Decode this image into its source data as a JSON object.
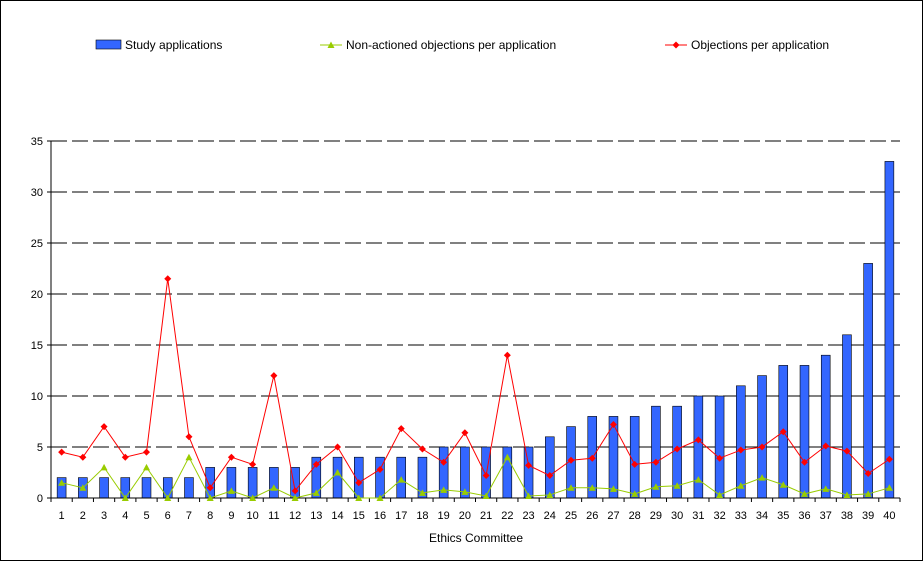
{
  "chart_data": {
    "type": "bar",
    "xlabel": "Ethics Committee",
    "ylabel": "",
    "ylim": [
      0,
      35
    ],
    "ytick_step": 5,
    "grid": "horizontal dashed",
    "legend_position": "top",
    "categories": [
      "1",
      "2",
      "3",
      "4",
      "5",
      "6",
      "7",
      "8",
      "9",
      "10",
      "11",
      "12",
      "13",
      "14",
      "15",
      "16",
      "17",
      "18",
      "19",
      "20",
      "21",
      "22",
      "23",
      "24",
      "25",
      "26",
      "27",
      "28",
      "29",
      "30",
      "31",
      "32",
      "33",
      "34",
      "35",
      "36",
      "37",
      "38",
      "39",
      "40"
    ],
    "series": [
      {
        "name": "Study applications",
        "kind": "bar",
        "color": "#3366ff",
        "values": [
          2,
          2,
          2,
          2,
          2,
          2,
          2,
          3,
          3,
          3,
          3,
          3,
          4,
          4,
          4,
          4,
          4,
          4,
          5,
          5,
          5,
          5,
          5,
          6,
          7,
          8,
          8,
          8,
          9,
          9,
          10,
          10,
          11,
          12,
          13,
          13,
          14,
          16,
          23,
          33
        ]
      },
      {
        "name": "Non-actioned objections per application",
        "kind": "line",
        "marker": "triangle",
        "color": "#99cc00",
        "values": [
          1.5,
          1,
          3,
          0,
          3,
          0,
          4,
          0,
          0.7,
          0,
          1,
          0,
          0.5,
          2.5,
          0,
          0,
          1.8,
          0.5,
          0.8,
          0.6,
          0.2,
          4,
          0.2,
          0.3,
          1,
          1,
          0.9,
          0.4,
          1.1,
          1.2,
          1.8,
          0.3,
          1.2,
          2,
          1.3,
          0.4,
          0.9,
          0.3,
          0.4,
          1
        ]
      },
      {
        "name": "Objections per application",
        "kind": "line",
        "marker": "diamond",
        "color": "#ff0000",
        "values": [
          4.5,
          4,
          7,
          4,
          4.5,
          21.5,
          6,
          1,
          4,
          3.3,
          12,
          0.7,
          3.3,
          5,
          1.5,
          2.8,
          6.8,
          4.8,
          3.5,
          6.4,
          2.2,
          14,
          3.2,
          2.2,
          3.7,
          3.9,
          7.2,
          3.3,
          3.5,
          4.8,
          5.7,
          3.9,
          4.7,
          5,
          6.5,
          3.5,
          5.1,
          4.6,
          2.4,
          3.8
        ]
      }
    ]
  }
}
